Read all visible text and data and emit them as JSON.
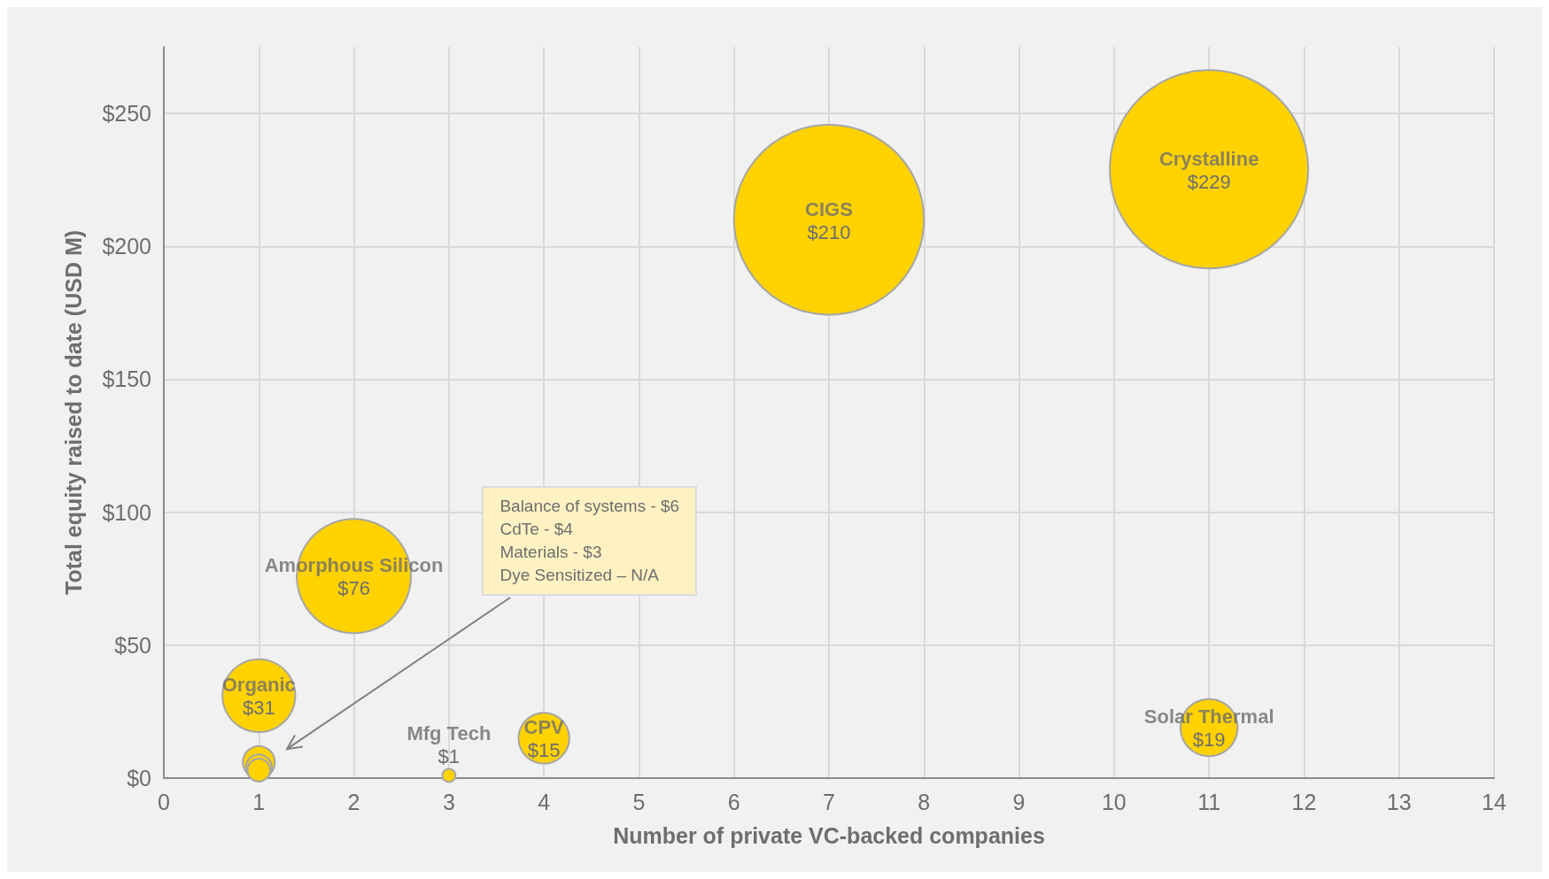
{
  "chart_data": {
    "type": "bubble",
    "xlabel": "Number of private VC-backed companies",
    "ylabel": "Total equity raised to date (USD M)",
    "xlim": [
      0,
      14
    ],
    "xticks": [
      0,
      1,
      2,
      3,
      4,
      5,
      6,
      7,
      8,
      9,
      10,
      11,
      12,
      13,
      14
    ],
    "ylim": [
      0,
      275
    ],
    "yticks": [
      {
        "value": 0,
        "label": "$0"
      },
      {
        "value": 50,
        "label": "$50"
      },
      {
        "value": 100,
        "label": "$100"
      },
      {
        "value": 150,
        "label": "$150"
      },
      {
        "value": 200,
        "label": "$200"
      },
      {
        "value": 250,
        "label": "$250"
      }
    ],
    "grid": true,
    "series": [
      {
        "color": "#ffd200",
        "x": [
          11,
          7,
          2,
          1,
          4,
          11,
          3,
          1,
          1,
          1
        ],
        "values": [
          229,
          210,
          76,
          31,
          15,
          19,
          1,
          6,
          4,
          3
        ],
        "sizes": [
          1,
          0.917,
          0.332,
          0.135,
          0.0655,
          0.083,
          0.0044,
          0.026,
          0.017,
          0.013
        ],
        "value_labels": [
          "$229",
          "$210",
          "$76",
          "$31",
          "$15",
          "$19",
          "$1",
          null,
          null,
          null
        ]
      }
    ],
    "annotations": [
      {
        "text": "Crystalline",
        "x": 11,
        "y": 229
      },
      {
        "text": "CIGS",
        "x": 7,
        "y": 210
      },
      {
        "text": "Amorphous Silicon",
        "x": 2,
        "y": 76
      },
      {
        "text": "Organic",
        "x": 1,
        "y": 31
      },
      {
        "text": "CPV",
        "x": 4,
        "y": 15
      },
      {
        "text": "Solar Thermal",
        "x": 11,
        "y": 19
      },
      {
        "text": "Mfg Tech",
        "x": 3,
        "y": 1
      },
      [
        "Balance of systems - $6",
        "CdTe - $4",
        "Materials - $3",
        "Dye Sensitized – N/A"
      ]
    ]
  }
}
